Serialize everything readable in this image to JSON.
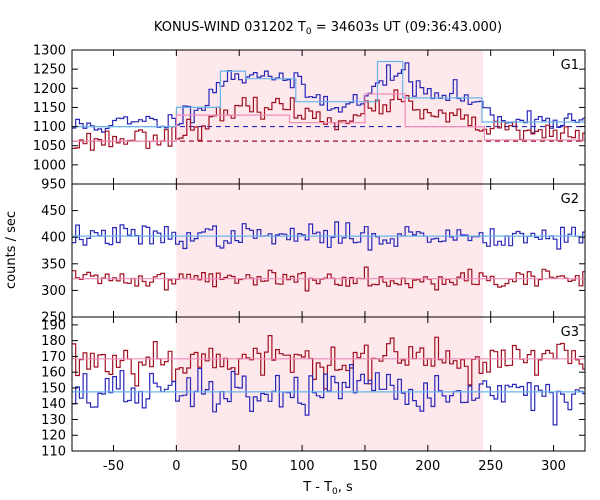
{
  "chart_data": {
    "type": "line",
    "title_prefix": "KONUS-WIND 031202 T",
    "title_sub": "0",
    "title_suffix": " = 34603s UT (09:36:43.000)",
    "xlabel_prefix": "T - T",
    "xlabel_sub": "0",
    "xlabel_suffix": ", s",
    "ylabel": "counts / sec",
    "xlim": [
      -83,
      325
    ],
    "xticks": [
      -50,
      0,
      50,
      100,
      150,
      200,
      250,
      300
    ],
    "shaded_interval": [
      0,
      244
    ],
    "shade_color": "#fde8ec",
    "bin_width_s": 2.944,
    "grid": false,
    "panels": [
      {
        "name": "G1",
        "ylim": [
          950,
          1300
        ],
        "yticks": [
          950,
          1000,
          1050,
          1100,
          1150,
          1200,
          1250,
          1300
        ],
        "series": [
          {
            "color": "#2828b8",
            "background": 1100,
            "noise": 14,
            "seed": 11,
            "profile": [
              [
                -83,
                1100
              ],
              [
                0,
                1115
              ],
              [
                25,
                1175
              ],
              [
                35,
                1220
              ],
              [
                55,
                1235
              ],
              [
                70,
                1245
              ],
              [
                85,
                1225
              ],
              [
                100,
                1200
              ],
              [
                110,
                1175
              ],
              [
                125,
                1160
              ],
              [
                150,
                1165
              ],
              [
                162,
                1215
              ],
              [
                172,
                1250
              ],
              [
                182,
                1240
              ],
              [
                190,
                1200
              ],
              [
                205,
                1180
              ],
              [
                225,
                1185
              ],
              [
                245,
                1145
              ],
              [
                260,
                1120
              ],
              [
                325,
                1115
              ]
            ]
          },
          {
            "color": "#a01020",
            "background": 1062,
            "noise": 14,
            "seed": 23,
            "profile": [
              [
                -83,
                1058
              ],
              [
                0,
                1080
              ],
              [
                30,
                1115
              ],
              [
                50,
                1140
              ],
              [
                75,
                1160
              ],
              [
                100,
                1135
              ],
              [
                125,
                1120
              ],
              [
                150,
                1130
              ],
              [
                175,
                1175
              ],
              [
                190,
                1140
              ],
              [
                220,
                1120
              ],
              [
                245,
                1100
              ],
              [
                270,
                1085
              ],
              [
                325,
                1075
              ]
            ]
          }
        ],
        "fits": [
          {
            "color": "#6ab4ec",
            "points": [
              [
                -83,
                1100
              ],
              [
                0,
                1100
              ],
              [
                0,
                1150
              ],
              [
                35,
                1150
              ],
              [
                35,
                1245
              ],
              [
                55,
                1245
              ],
              [
                55,
                1225
              ],
              [
                95,
                1225
              ],
              [
                95,
                1165
              ],
              [
                160,
                1165
              ],
              [
                160,
                1270
              ],
              [
                180,
                1270
              ],
              [
                180,
                1175
              ],
              [
                243,
                1175
              ],
              [
                243,
                1112
              ],
              [
                325,
                1112
              ]
            ]
          },
          {
            "color": "#f08cb8",
            "points": [
              [
                -83,
                1062
              ],
              [
                0,
                1062
              ],
              [
                0,
                1130
              ],
              [
                90,
                1130
              ],
              [
                90,
                1110
              ],
              [
                150,
                1110
              ],
              [
                150,
                1185
              ],
              [
                182,
                1185
              ],
              [
                182,
                1100
              ],
              [
                245,
                1100
              ],
              [
                245,
                1065
              ],
              [
                325,
                1065
              ]
            ]
          }
        ]
      },
      {
        "name": "G2",
        "ylim": [
          250,
          500
        ],
        "yticks": [
          250,
          300,
          350,
          400,
          450
        ],
        "series": [
          {
            "color": "#2828b8",
            "background": 402,
            "noise": 11,
            "seed": 37
          },
          {
            "color": "#a01020",
            "background": 322,
            "noise": 9,
            "seed": 41
          }
        ],
        "fits": [
          {
            "color": "#6ab4ec",
            "points": [
              [
                -83,
                402
              ],
              [
                325,
                402
              ]
            ]
          },
          {
            "color": "#f08cb8",
            "points": [
              [
                -83,
                322
              ],
              [
                325,
                322
              ]
            ]
          }
        ]
      },
      {
        "name": "G3",
        "ylim": [
          110,
          195
        ],
        "yticks": [
          110,
          120,
          130,
          140,
          150,
          160,
          170,
          180,
          190
        ],
        "series": [
          {
            "color": "#a01020",
            "background": 168,
            "noise": 7,
            "seed": 53
          },
          {
            "color": "#2828b8",
            "background": 147,
            "noise": 7,
            "seed": 67
          }
        ],
        "fits": [
          {
            "color": "#f08cb8",
            "points": [
              [
                -83,
                168.5
              ],
              [
                325,
                168.5
              ]
            ]
          },
          {
            "color": "#6ab4ec",
            "points": [
              [
                -83,
                147.5
              ],
              [
                325,
                147.5
              ]
            ]
          }
        ]
      }
    ]
  }
}
